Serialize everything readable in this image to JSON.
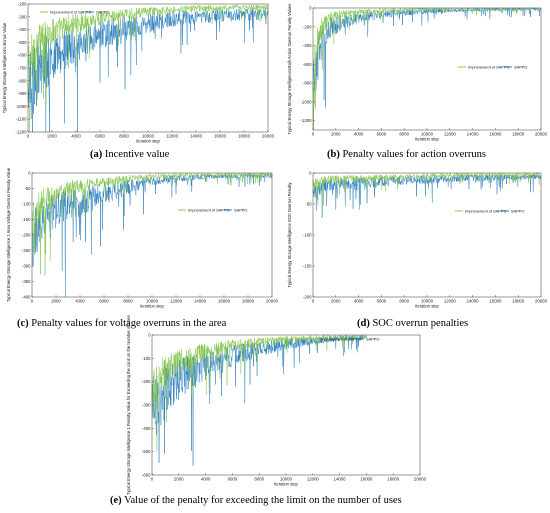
{
  "colors": {
    "improved": "#7dc242",
    "baseline": "#1f78b8"
  },
  "chart_data": [
    {
      "id": "a",
      "type": "line",
      "caption_tag": "(a)",
      "caption_text": "Incentive value",
      "xlabel": "Iteration step",
      "ylabel": "Typical Energy Storage Intelligence1 Bonus Value",
      "xlim": [
        0,
        20000
      ],
      "ylim": [
        -1200,
        -200
      ],
      "xticks": [
        0,
        2000,
        4000,
        6000,
        8000,
        10000,
        12000,
        14000,
        16000,
        18000,
        20000
      ],
      "yticks": [
        -1200,
        -1100,
        -1000,
        -900,
        -800,
        -700,
        -600,
        -500,
        -400,
        -300,
        -200
      ],
      "legend_position": "top-left",
      "series": [
        {
          "name": "Improvement of SAPPO",
          "color": "improved",
          "x": [
            0,
            500,
            1000,
            2000,
            3000,
            4000,
            6000,
            8000,
            10000,
            12000,
            14000,
            16000,
            18000,
            20000
          ],
          "y": [
            -700,
            -560,
            -480,
            -420,
            -380,
            -350,
            -310,
            -280,
            -260,
            -245,
            -235,
            -232,
            -228,
            -225
          ]
        },
        {
          "name": "SAPPO",
          "color": "baseline",
          "x": [
            0,
            500,
            1000,
            2000,
            3000,
            4000,
            6000,
            8000,
            10000,
            12000,
            14000,
            16000,
            18000,
            20000
          ],
          "y": [
            -900,
            -780,
            -700,
            -620,
            -560,
            -510,
            -440,
            -390,
            -350,
            -320,
            -300,
            -290,
            -285,
            -280
          ]
        }
      ]
    },
    {
      "id": "b",
      "type": "line",
      "caption_tag": "(b)",
      "caption_text": "Penalty values for action overruns",
      "xlabel": "Iteration step",
      "ylabel": "Typical Energy Storage Intelligence1Bulk Action Overrun Penalty Values",
      "xlim": [
        0,
        20000
      ],
      "ylim": [
        -1300,
        0
      ],
      "xticks": [
        0,
        2000,
        4000,
        6000,
        8000,
        10000,
        12000,
        14000,
        16000,
        18000,
        20000
      ],
      "yticks": [
        -1200,
        -1000,
        -800,
        -600,
        -400,
        -200,
        0
      ],
      "legend_position": "upper-center",
      "series": [
        {
          "name": "Improvement of SAPPO",
          "color": "improved",
          "x": [
            0,
            300,
            800,
            1500,
            2500,
            4000,
            6000,
            8000,
            10000,
            14000,
            20000
          ],
          "y": [
            -900,
            -400,
            -200,
            -100,
            -60,
            -40,
            -25,
            -15,
            -10,
            -5,
            -3
          ]
        },
        {
          "name": "SAPPO",
          "color": "baseline",
          "x": [
            0,
            300,
            800,
            1500,
            2500,
            4000,
            6000,
            8000,
            10000,
            14000,
            20000
          ],
          "y": [
            -1000,
            -600,
            -350,
            -220,
            -150,
            -100,
            -70,
            -50,
            -35,
            -20,
            -10
          ]
        }
      ]
    },
    {
      "id": "c",
      "type": "line",
      "caption_tag": "(c)",
      "caption_text": "Penalty values for voltage overruns in the area",
      "xlabel": "Iteration step",
      "ylabel": "Typical Energy Storage Intelligence 1 Area Voltage Overrun Penalty Value",
      "xlim": [
        0,
        20000
      ],
      "ylim": [
        -400,
        0
      ],
      "xticks": [
        0,
        2000,
        4000,
        6000,
        8000,
        10000,
        12000,
        14000,
        16000,
        18000,
        20000
      ],
      "yticks": [
        -400,
        -350,
        -300,
        -250,
        -200,
        -150,
        -100,
        -50,
        0
      ],
      "legend_position": "center-right",
      "series": [
        {
          "name": "Improvement of SAPPO",
          "color": "improved",
          "x": [
            0,
            500,
            1000,
            2000,
            3000,
            4000,
            6000,
            8000,
            10000,
            14000,
            20000
          ],
          "y": [
            -180,
            -120,
            -90,
            -65,
            -50,
            -40,
            -28,
            -18,
            -10,
            -6,
            -4
          ]
        },
        {
          "name": "SAPPO",
          "color": "baseline",
          "x": [
            0,
            500,
            1000,
            2000,
            3000,
            4000,
            6000,
            8000,
            10000,
            14000,
            20000
          ],
          "y": [
            -220,
            -170,
            -140,
            -120,
            -105,
            -95,
            -70,
            -45,
            -25,
            -12,
            -8
          ]
        }
      ]
    },
    {
      "id": "d",
      "type": "line",
      "caption_tag": "(d)",
      "caption_text": "SOC overrun penalties",
      "xlabel": "Iteration step",
      "ylabel": "Typical Energy Storage Intelligence SOC Overrun Penalty",
      "xlim": [
        0,
        20000
      ],
      "ylim": [
        -200,
        0
      ],
      "xticks": [
        0,
        2000,
        4000,
        6000,
        8000,
        10000,
        12000,
        14000,
        16000,
        18000,
        20000
      ],
      "yticks": [
        -200,
        -150,
        -100,
        -50,
        0
      ],
      "legend_position": "center-right",
      "series": [
        {
          "name": "Improvement of SAPPO",
          "color": "improved",
          "x": [
            0,
            1000,
            2000,
            4000,
            6000,
            8000,
            12000,
            16000,
            20000
          ],
          "y": [
            -20,
            -12,
            -10,
            -8,
            -7,
            -5,
            -4,
            -3,
            -3
          ]
        },
        {
          "name": "SAPPO",
          "color": "baseline",
          "x": [
            0,
            1000,
            2000,
            4000,
            6000,
            8000,
            12000,
            16000,
            20000
          ],
          "y": [
            -30,
            -20,
            -18,
            -16,
            -14,
            -12,
            -9,
            -7,
            -6
          ]
        }
      ]
    },
    {
      "id": "e",
      "type": "line",
      "caption_tag": "(e)",
      "caption_text": "Value of the penalty for exceeding the limit on the number of uses",
      "xlabel": "Iteration step",
      "ylabel": "Typical Energy Storage Intelligence 1 Penalty Value for Exceeding the Limit on the Number of Uses",
      "xlim": [
        0,
        20000
      ],
      "ylim": [
        -600,
        0
      ],
      "xticks": [
        0,
        2000,
        4000,
        6000,
        8000,
        10000,
        12000,
        14000,
        16000,
        18000,
        20000
      ],
      "yticks": [
        -600,
        -500,
        -400,
        -300,
        -200,
        -100,
        0
      ],
      "legend_position": "top-right",
      "series": [
        {
          "name": "Improvement of SAPPO",
          "color": "improved",
          "x": [
            0,
            500,
            1000,
            2000,
            3000,
            4000,
            5000,
            6000,
            8000,
            10000,
            12000,
            14000,
            16000
          ],
          "y": [
            -260,
            -200,
            -160,
            -120,
            -95,
            -75,
            -60,
            -45,
            -30,
            -18,
            -12,
            -8,
            -5
          ]
        },
        {
          "name": "SAPPO",
          "color": "baseline",
          "x": [
            0,
            500,
            1000,
            2000,
            3000,
            4000,
            5000,
            6000,
            8000,
            10000,
            12000,
            14000,
            16000
          ],
          "y": [
            -330,
            -280,
            -240,
            -190,
            -160,
            -130,
            -110,
            -90,
            -60,
            -40,
            -25,
            -15,
            -10
          ]
        }
      ]
    }
  ]
}
